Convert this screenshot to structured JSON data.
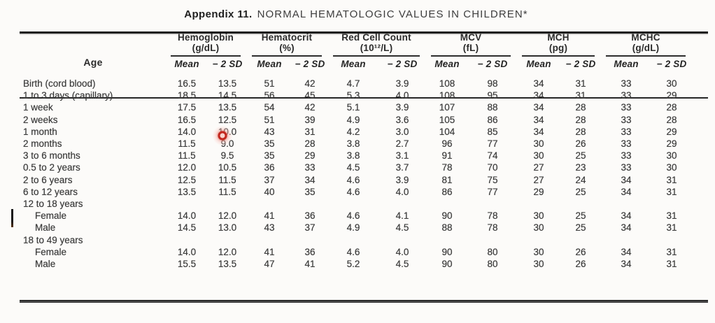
{
  "title": {
    "appendix": "Appendix 11.",
    "heading": "NORMAL HEMATOLOGIC VALUES IN CHILDREN*"
  },
  "table": {
    "age_header": "Age",
    "sub_mean": "Mean",
    "sub_sd": "− 2 SD",
    "groups": [
      {
        "label": "Hemoglobin",
        "unit": "(g/dL)"
      },
      {
        "label": "Hematocrit",
        "unit": "(%)"
      },
      {
        "label": "Red Cell Count",
        "unit": "(10¹²/L)"
      },
      {
        "label": "MCV",
        "unit": "(fL)"
      },
      {
        "label": "MCH",
        "unit": "(pg)"
      },
      {
        "label": "MCHC",
        "unit": "(g/dL)"
      }
    ],
    "rows": [
      {
        "age": "Birth (cord blood)",
        "values": [
          "16.5",
          "13.5",
          "51",
          "42",
          "4.7",
          "3.9",
          "108",
          "98",
          "34",
          "31",
          "33",
          "30"
        ]
      },
      {
        "age": "1 to 3 days (capillary)",
        "values": [
          "18.5",
          "14.5",
          "56",
          "45",
          "5.3",
          "4.0",
          "108",
          "95",
          "34",
          "31",
          "33",
          "29"
        ]
      },
      {
        "age": "1 week",
        "values": [
          "17.5",
          "13.5",
          "54",
          "42",
          "5.1",
          "3.9",
          "107",
          "88",
          "34",
          "28",
          "33",
          "28"
        ],
        "marker_on_value": 1
      },
      {
        "age": "2 weeks",
        "values": [
          "16.5",
          "12.5",
          "51",
          "39",
          "4.9",
          "3.6",
          "105",
          "86",
          "34",
          "28",
          "33",
          "28"
        ]
      },
      {
        "age": "1 month",
        "values": [
          "14.0",
          "10.0",
          "43",
          "31",
          "4.2",
          "3.0",
          "104",
          "85",
          "34",
          "28",
          "33",
          "29"
        ]
      },
      {
        "age": "2 months",
        "values": [
          "11.5",
          "9.0",
          "35",
          "28",
          "3.8",
          "2.7",
          "96",
          "77",
          "30",
          "26",
          "33",
          "29"
        ]
      },
      {
        "age": "3 to 6 months",
        "values": [
          "11.5",
          "9.5",
          "35",
          "29",
          "3.8",
          "3.1",
          "91",
          "74",
          "30",
          "25",
          "33",
          "30"
        ]
      },
      {
        "age": "0.5 to 2 years",
        "values": [
          "12.0",
          "10.5",
          "36",
          "33",
          "4.5",
          "3.7",
          "78",
          "70",
          "27",
          "23",
          "33",
          "30"
        ]
      },
      {
        "age": "2 to 6 years",
        "values": [
          "12.5",
          "11.5",
          "37",
          "34",
          "4.6",
          "3.9",
          "81",
          "75",
          "27",
          "24",
          "34",
          "31"
        ]
      },
      {
        "age": "6 to 12 years",
        "values": [
          "13.5",
          "11.5",
          "40",
          "35",
          "4.6",
          "4.0",
          "86",
          "77",
          "29",
          "25",
          "34",
          "31"
        ]
      },
      {
        "age": "12 to 18 years",
        "group_label": true,
        "values": [
          "",
          "",
          "",
          "",
          "",
          "",
          "",
          "",
          "",
          "",
          "",
          ""
        ]
      },
      {
        "age": "Female",
        "indent": true,
        "values": [
          "14.0",
          "12.0",
          "41",
          "36",
          "4.6",
          "4.1",
          "90",
          "78",
          "30",
          "25",
          "34",
          "31"
        ]
      },
      {
        "age": "Male",
        "indent": true,
        "values": [
          "14.5",
          "13.0",
          "43",
          "37",
          "4.9",
          "4.5",
          "88",
          "78",
          "30",
          "25",
          "34",
          "31"
        ]
      },
      {
        "age": "18 to 49 years",
        "group_label": true,
        "values": [
          "",
          "",
          "",
          "",
          "",
          "",
          "",
          "",
          "",
          "",
          "",
          ""
        ]
      },
      {
        "age": "Female",
        "indent": true,
        "values": [
          "14.0",
          "12.0",
          "41",
          "36",
          "4.6",
          "4.0",
          "90",
          "80",
          "30",
          "26",
          "34",
          "31"
        ]
      },
      {
        "age": "Male",
        "indent": true,
        "values": [
          "15.5",
          "13.5",
          "47",
          "41",
          "5.2",
          "4.5",
          "90",
          "80",
          "30",
          "26",
          "34",
          "31"
        ]
      }
    ]
  },
  "marks": {
    "click_marker_ring_color": "#c3261d",
    "click_marker_glow_color": "#f5a79e",
    "cursor_bar_color": "#181818"
  }
}
